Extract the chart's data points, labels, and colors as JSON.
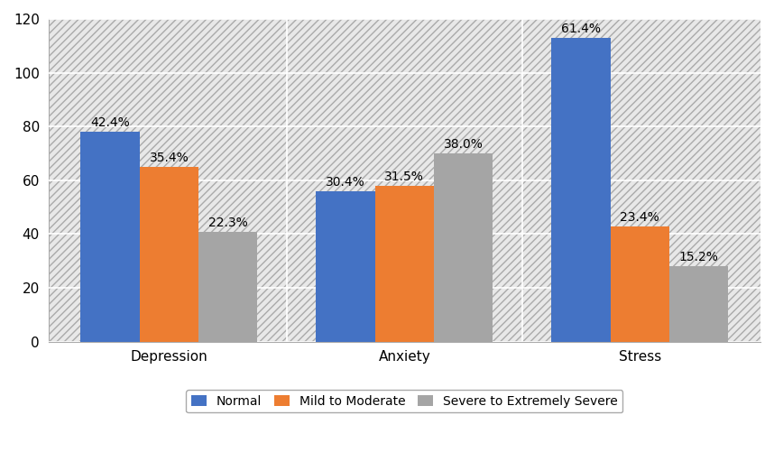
{
  "categories": [
    "Depression",
    "Anxiety",
    "Stress"
  ],
  "series": [
    {
      "label": "Normal",
      "values": [
        78,
        56,
        113
      ],
      "percentages": [
        "42.4%",
        "30.4%",
        "61.4%"
      ],
      "color": "#4472C4"
    },
    {
      "label": "Mild to Moderate",
      "values": [
        65,
        58,
        43
      ],
      "percentages": [
        "35.4%",
        "31.5%",
        "23.4%"
      ],
      "color": "#ED7D31"
    },
    {
      "label": "Severe to Extremely Severe",
      "values": [
        41,
        70,
        28
      ],
      "percentages": [
        "22.3%",
        "38.0%",
        "15.2%"
      ],
      "color": "#A5A5A5"
    }
  ],
  "ylim": [
    0,
    120
  ],
  "yticks": [
    0,
    20,
    40,
    60,
    80,
    100,
    120
  ],
  "bar_width": 0.25,
  "background_color": "#FFFFFF",
  "plot_bg_color": "#DCDCDC",
  "grid_color": "#FFFFFF",
  "label_fontsize": 11,
  "tick_fontsize": 11,
  "legend_fontsize": 10,
  "annotation_fontsize": 10
}
